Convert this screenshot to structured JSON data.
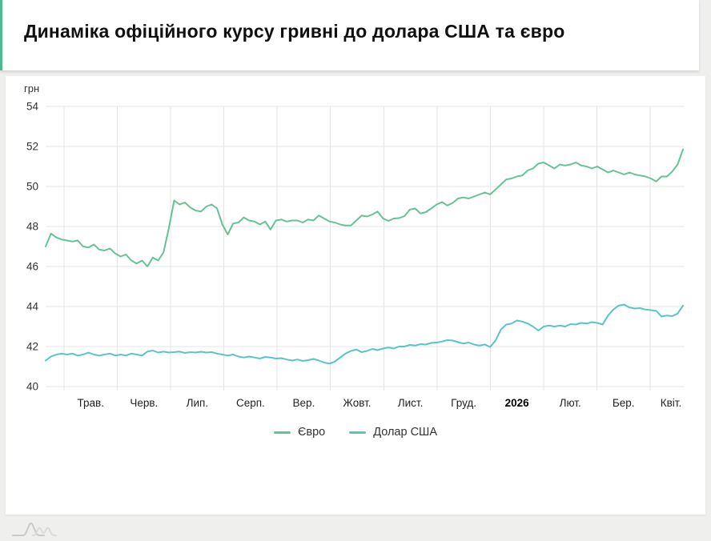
{
  "header": {
    "title": "Динаміка офіційного курсу гривні до долара США та євро",
    "accent_color": "#4eb98b"
  },
  "chart_data": {
    "type": "line",
    "title": "Динаміка офіційного курсу гривні до долара США та євро",
    "y_unit_label": "грн",
    "ylim": [
      40,
      54
    ],
    "yticks": [
      54,
      52,
      50,
      48,
      46,
      44,
      42,
      40
    ],
    "x_labels": [
      "Трав.",
      "Черв.",
      "Лип.",
      "Серп.",
      "Вер.",
      "Жовт.",
      "Лист.",
      "Груд.",
      "2026",
      "Лют.",
      "Бер.",
      "Квіт."
    ],
    "x_label_bold": "2026",
    "grid": true,
    "legend_position": "bottom",
    "series": [
      {
        "name": "Євро",
        "color": "#66c295",
        "values": [
          47.0,
          47.65,
          47.45,
          47.35,
          47.3,
          47.25,
          47.3,
          47.0,
          46.95,
          47.1,
          46.85,
          46.8,
          46.9,
          46.65,
          46.5,
          46.6,
          46.3,
          46.15,
          46.3,
          46.0,
          46.45,
          46.3,
          46.7,
          47.9,
          49.3,
          49.1,
          49.2,
          48.95,
          48.8,
          48.75,
          49.0,
          49.1,
          48.9,
          48.1,
          47.6,
          48.15,
          48.2,
          48.45,
          48.3,
          48.25,
          48.1,
          48.25,
          47.85,
          48.3,
          48.35,
          48.25,
          48.3,
          48.3,
          48.2,
          48.35,
          48.3,
          48.55,
          48.4,
          48.25,
          48.2,
          48.1,
          48.05,
          48.05,
          48.3,
          48.55,
          48.5,
          48.6,
          48.75,
          48.4,
          48.28,
          48.4,
          48.42,
          48.52,
          48.85,
          48.9,
          48.65,
          48.72,
          48.9,
          49.1,
          49.22,
          49.05,
          49.18,
          49.4,
          49.45,
          49.4,
          49.5,
          49.6,
          49.7,
          49.6,
          49.85,
          50.1,
          50.35,
          50.4,
          50.5,
          50.55,
          50.8,
          50.9,
          51.15,
          51.2,
          51.05,
          50.9,
          51.1,
          51.05,
          51.1,
          51.2,
          51.05,
          51.0,
          50.9,
          51.0,
          50.85,
          50.7,
          50.8,
          50.7,
          50.6,
          50.7,
          50.6,
          50.55,
          50.5,
          50.4,
          50.25,
          50.5,
          50.5,
          50.75,
          51.1,
          51.85
        ]
      },
      {
        "name": "Долар США",
        "color": "#57c5c8",
        "values": [
          41.3,
          41.5,
          41.6,
          41.65,
          41.6,
          41.65,
          41.55,
          41.6,
          41.7,
          41.6,
          41.55,
          41.6,
          41.65,
          41.55,
          41.6,
          41.55,
          41.65,
          41.6,
          41.55,
          41.75,
          41.8,
          41.7,
          41.75,
          41.7,
          41.72,
          41.75,
          41.68,
          41.72,
          41.7,
          41.74,
          41.7,
          41.72,
          41.65,
          41.6,
          41.55,
          41.6,
          41.5,
          41.45,
          41.5,
          41.45,
          41.4,
          41.48,
          41.45,
          41.4,
          41.42,
          41.35,
          41.3,
          41.35,
          41.28,
          41.32,
          41.38,
          41.3,
          41.2,
          41.15,
          41.25,
          41.45,
          41.65,
          41.78,
          41.85,
          41.72,
          41.78,
          41.88,
          41.82,
          41.9,
          41.95,
          41.9,
          42.0,
          42.0,
          42.08,
          42.05,
          42.12,
          42.1,
          42.18,
          42.2,
          42.25,
          42.32,
          42.3,
          42.22,
          42.15,
          42.2,
          42.1,
          42.05,
          42.1,
          41.98,
          42.3,
          42.85,
          43.1,
          43.15,
          43.3,
          43.25,
          43.15,
          43.0,
          42.8,
          43.0,
          43.05,
          43.0,
          43.05,
          43.0,
          43.12,
          43.1,
          43.18,
          43.15,
          43.22,
          43.18,
          43.1,
          43.55,
          43.85,
          44.05,
          44.1,
          43.95,
          43.9,
          43.92,
          43.85,
          43.82,
          43.78,
          43.5,
          43.55,
          43.52,
          43.65,
          44.05
        ]
      }
    ]
  }
}
